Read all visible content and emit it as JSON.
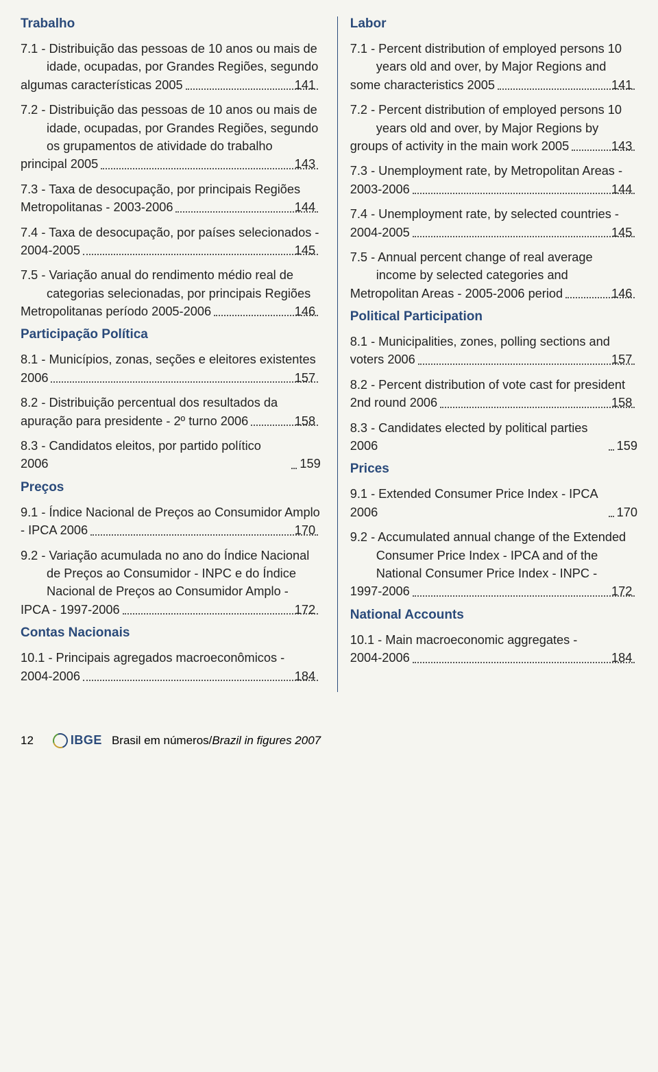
{
  "colors": {
    "heading": "#2a4a7a",
    "text": "#222222",
    "divider": "#2a4a7a",
    "background": "#f5f5f0"
  },
  "left": {
    "sections": [
      {
        "title": "Trabalho",
        "items": [
          {
            "num": "7.1",
            "text": "Distribuição das pessoas de 10 anos ou mais de idade, ocupadas, por Grandes Regiões, segundo algumas características 2005",
            "page": "141"
          },
          {
            "num": "7.2",
            "text": "Distribuição das pessoas de 10 anos ou mais de idade, ocupadas, por Grandes Regiões, segundo os grupamentos de atividade do trabalho principal 2005",
            "page": "143"
          },
          {
            "num": "7.3",
            "text": "Taxa de desocupação, por principais Regiões Metropolitanas - 2003-2006",
            "page": "144"
          },
          {
            "num": "7.4",
            "text": "Taxa de desocupação, por países selecionados - 2004-2005",
            "page": "145"
          },
          {
            "num": "7.5",
            "text": "Variação anual do rendimento médio real de categorias selecionadas, por principais Regiões Metropolitanas período 2005-2006",
            "page": "146"
          }
        ]
      },
      {
        "title": "Participação Política",
        "items": [
          {
            "num": "8.1",
            "text": "Municípios, zonas, seções e eleitores existentes 2006",
            "page": "157"
          },
          {
            "num": "8.2",
            "text": "Distribuição percentual dos resultados da apuração para presidente - 2º turno 2006",
            "page": "158"
          },
          {
            "num": "8.3",
            "text": "Candidatos eleitos, por partido político 2006",
            "page": "159"
          }
        ]
      },
      {
        "title": "Preços",
        "items": [
          {
            "num": "9.1",
            "text": "Índice Nacional de Preços ao Consumidor Amplo - IPCA 2006",
            "page": "170"
          },
          {
            "num": "9.2",
            "text": "Variação acumulada no ano do Índice Nacional de Preços ao Consumidor - INPC e do Índice Nacional de Preços ao Consumidor Amplo - IPCA - 1997-2006",
            "page": "172"
          }
        ]
      },
      {
        "title": "Contas Nacionais",
        "items": [
          {
            "num": "10.1",
            "text": "Principais agregados macroeconômicos - 2004-2006",
            "page": "184"
          }
        ]
      }
    ]
  },
  "right": {
    "sections": [
      {
        "title": "Labor",
        "items": [
          {
            "num": "7.1",
            "text": "Percent distribution of employed persons 10 years old and over, by Major Regions and some characteristics 2005",
            "page": "141"
          },
          {
            "num": "7.2",
            "text": "Percent distribution of employed persons 10 years old and over, by Major Regions by groups of activity in the main work 2005",
            "page": "143"
          },
          {
            "num": "7.3",
            "text": "Unemployment rate, by Metropolitan Areas - 2003-2006",
            "page": "144"
          },
          {
            "num": "7.4",
            "text": "Unemployment rate, by selected countries - 2004-2005",
            "page": "145"
          },
          {
            "num": "7.5",
            "text": "Annual percent change of real average income by selected categories and Metropolitan Areas - 2005-2006 period",
            "page": "146"
          }
        ]
      },
      {
        "title": "Political Participation",
        "items": [
          {
            "num": "8.1",
            "text": "Municipalities, zones, polling sections and voters 2006",
            "page": "157"
          },
          {
            "num": "8.2",
            "text": "Percent distribution of vote cast for president 2nd round 2006",
            "page": "158"
          },
          {
            "num": "8.3",
            "text": "Candidates elected by political parties 2006",
            "page": "159"
          }
        ]
      },
      {
        "title": "Prices",
        "items": [
          {
            "num": "9.1",
            "text": "Extended Consumer Price Index - IPCA 2006",
            "page": "170"
          },
          {
            "num": "9.2",
            "text": "Accumulated annual change of the Extended Consumer Price Index - IPCA and of the National Consumer Price Index - INPC - 1997-2006",
            "page": "172"
          }
        ]
      },
      {
        "title": "National Accounts",
        "items": [
          {
            "num": "10.1",
            "text": "Main macroeconomic aggregates - 2004-2006",
            "page": "184"
          }
        ]
      }
    ]
  },
  "footer": {
    "page_number": "12",
    "logo_text": "IBGE",
    "title_pt": "Brasil em números/",
    "title_en": "Brazil in figures 2007"
  }
}
